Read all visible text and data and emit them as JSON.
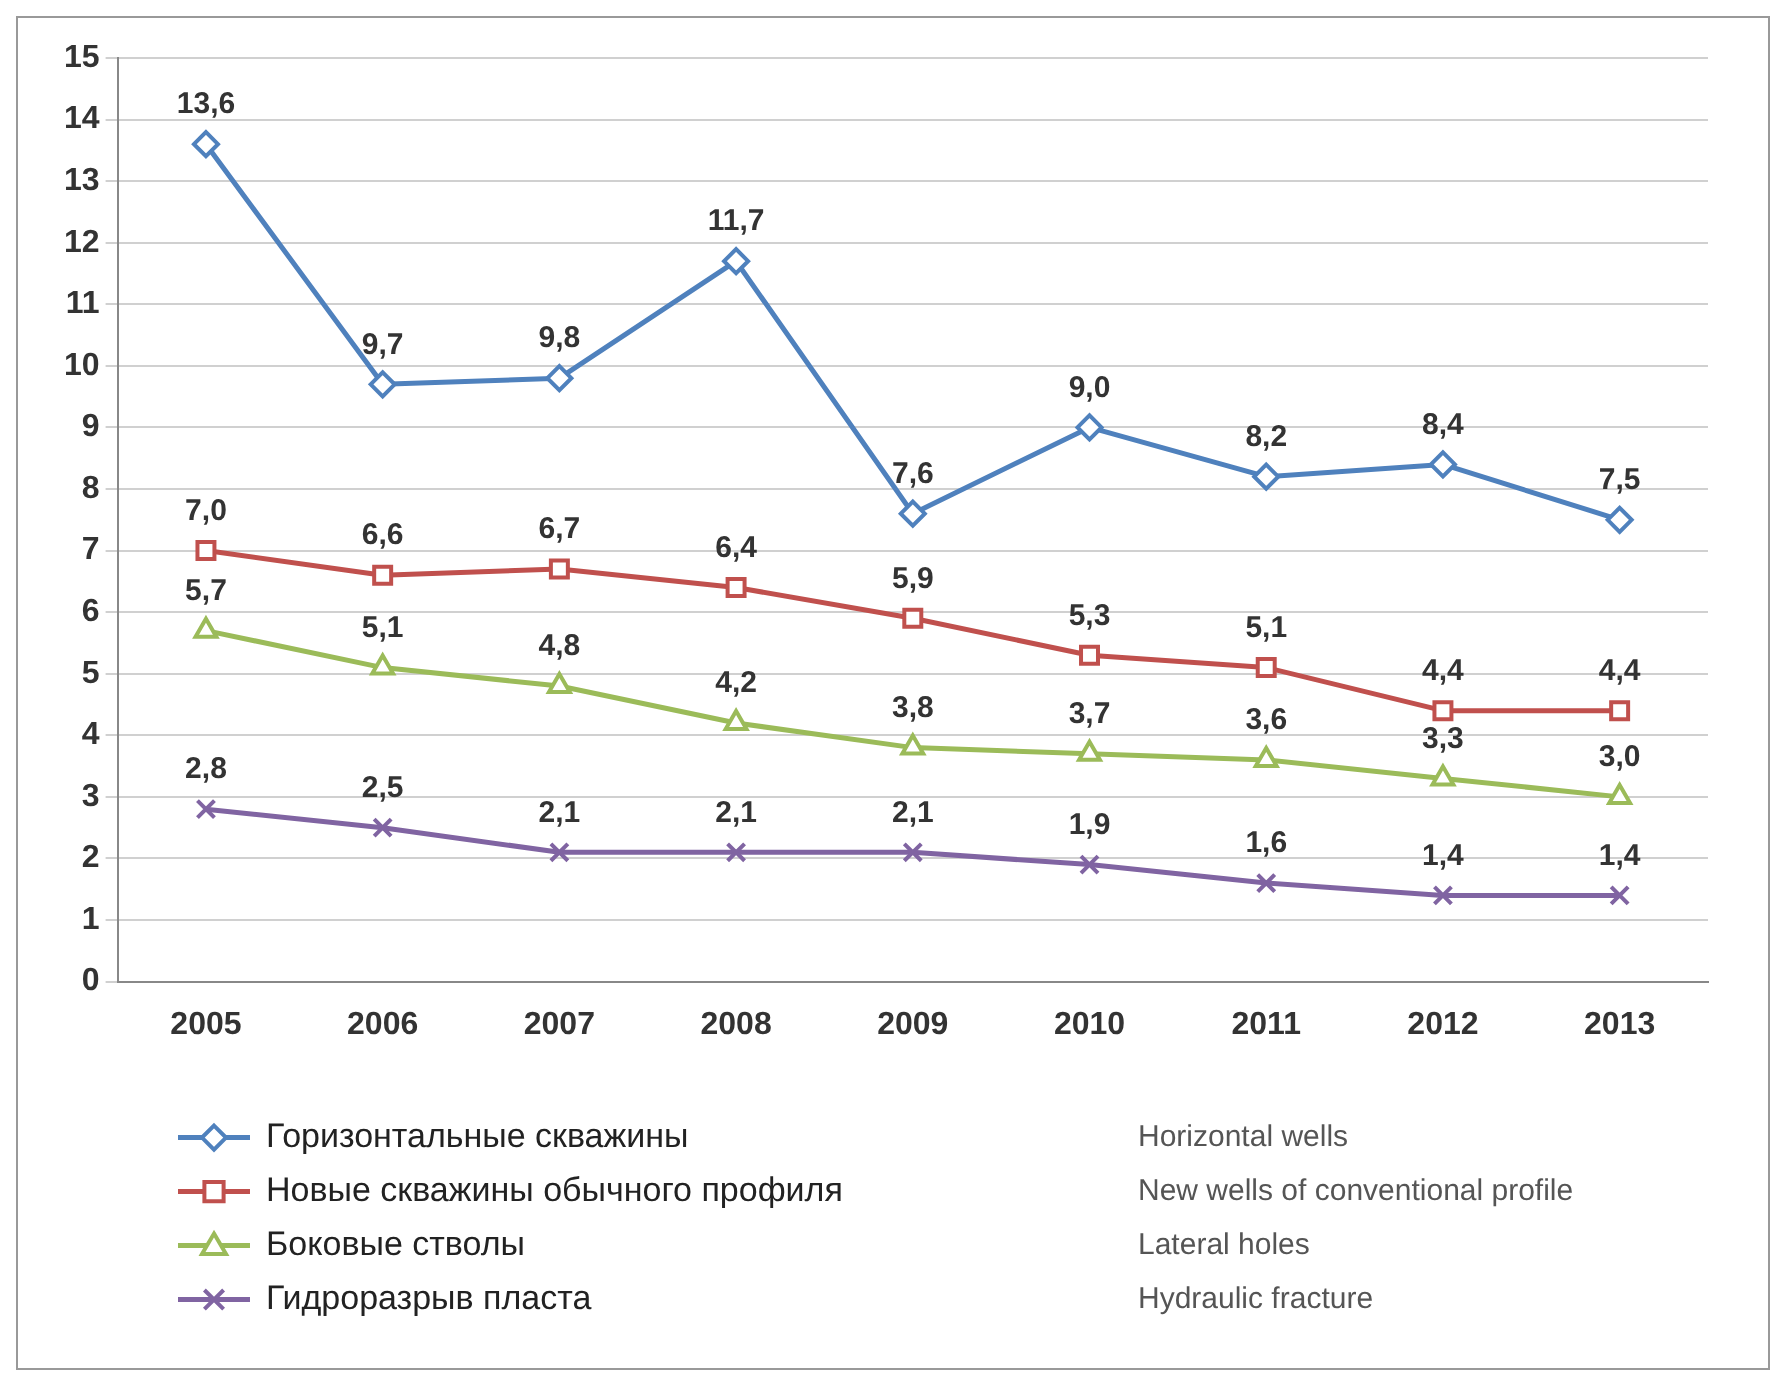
{
  "chart_data": {
    "type": "line",
    "categories": [
      "2005",
      "2006",
      "2007",
      "2008",
      "2009",
      "2010",
      "2011",
      "2012",
      "2013"
    ],
    "ylim": [
      0,
      15
    ],
    "yticks": [
      0,
      1,
      2,
      3,
      4,
      5,
      6,
      7,
      8,
      9,
      10,
      11,
      12,
      13,
      14,
      15
    ],
    "grid": "y",
    "legend": "bottom left",
    "line_style": "solid",
    "series": [
      {
        "name": "Горизонтальные скважины",
        "color": "#4f81bd",
        "marker": "diamond",
        "values": [
          13.6,
          9.7,
          9.8,
          11.7,
          7.6,
          9.0,
          8.2,
          8.4,
          7.5
        ],
        "value_labels": [
          "13,6",
          "9,7",
          "9,8",
          "11,7",
          "7,6",
          "9,0",
          "8,2",
          "8,4",
          "7,5"
        ]
      },
      {
        "name": "Новые скважины обычного профиля",
        "color": "#c0504d",
        "marker": "square",
        "values": [
          7.0,
          6.6,
          6.7,
          6.4,
          5.9,
          5.3,
          5.1,
          4.4,
          4.4
        ],
        "value_labels": [
          "7,0",
          "6,6",
          "6,7",
          "6,4",
          "5,9",
          "5,3",
          "5,1",
          "4,4",
          "4,4"
        ]
      },
      {
        "name": "Боковые стволы",
        "color": "#9bbb59",
        "marker": "triangle",
        "values": [
          5.7,
          5.1,
          4.8,
          4.2,
          3.8,
          3.7,
          3.6,
          3.3,
          3.0
        ],
        "value_labels": [
          "5,7",
          "5,1",
          "4,8",
          "4,2",
          "3,8",
          "3,7",
          "3,6",
          "3,3",
          "3,0"
        ]
      },
      {
        "name": "Гидроразрыв пласта",
        "color": "#8064a2",
        "marker": "cross",
        "values": [
          2.8,
          2.5,
          2.1,
          2.1,
          2.1,
          1.9,
          1.6,
          1.4,
          1.4
        ],
        "value_labels": [
          "2,8",
          "2,5",
          "2,1",
          "2,1",
          "2,1",
          "1,9",
          "1,6",
          "1,4",
          "1,4"
        ]
      }
    ],
    "annotations": [
      "Horizontal wells",
      "New wells of conventional profile",
      "Lateral holes",
      "Hydraulic fracture"
    ]
  }
}
